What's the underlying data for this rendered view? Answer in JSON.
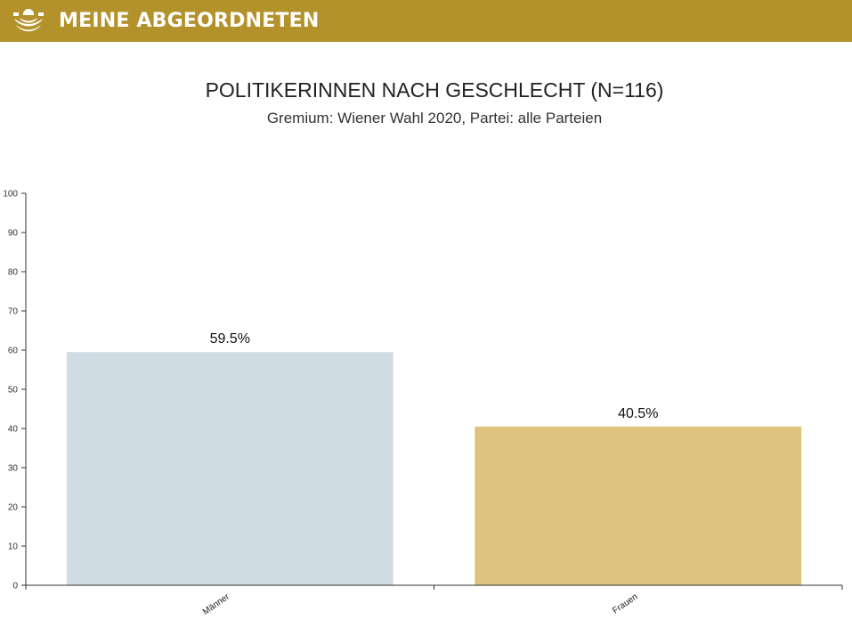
{
  "header": {
    "brand": "MEINE ABGEORDNETEN",
    "logo_icon": "parliament-seats-icon",
    "background": "#b3922b"
  },
  "chart_data": {
    "type": "bar",
    "title": "POLITIKERINNEN NACH GESCHLECHT (N=116)",
    "subtitle": "Gremium: Wiener Wahl 2020, Partei: alle Parteien",
    "categories": [
      "Männer",
      "Frauen"
    ],
    "values": [
      59.5,
      40.5
    ],
    "value_labels": [
      "59.5%",
      "40.5%"
    ],
    "colors": [
      "#cfdce3",
      "#dec27d"
    ],
    "ylim": [
      0,
      100
    ],
    "yticks": [
      0,
      10,
      20,
      30,
      40,
      50,
      60,
      70,
      80,
      90,
      100
    ],
    "xlabel": "",
    "ylabel": "",
    "grid": false
  }
}
